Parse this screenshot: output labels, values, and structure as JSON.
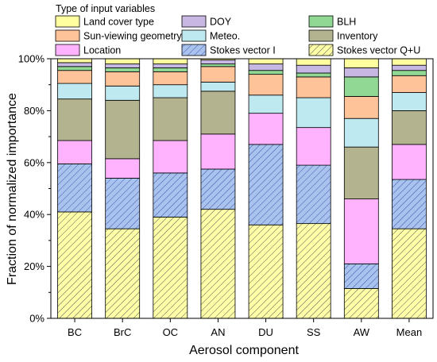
{
  "chart_data": {
    "type": "bar",
    "stacked": true,
    "xlabel": "Aerosol component",
    "ylabel": "Fraction of normalized importance",
    "ylim": [
      0,
      100
    ],
    "yticks": [
      0,
      20,
      40,
      60,
      80,
      100
    ],
    "ytick_suffix": "%",
    "legend_title": "Type of input variables",
    "legend_placement": "top",
    "categories": [
      "BC",
      "BrC",
      "OC",
      "AN",
      "DU",
      "SS",
      "AW",
      "Mean"
    ],
    "series": [
      {
        "name": "Stokes vector Q+U",
        "color": "#ffffa8",
        "pattern": "hatch-yellow",
        "values": [
          41,
          34.5,
          39,
          42,
          36,
          36.5,
          11.5,
          34.5
        ]
      },
      {
        "name": "Stokes vector I",
        "color": "#a9c3ee",
        "pattern": "hatch-blue",
        "values": [
          18.5,
          19.5,
          17,
          15.5,
          31,
          22.5,
          9.5,
          19
        ]
      },
      {
        "name": "Location",
        "color": "#ffb3ff",
        "values": [
          9,
          7.5,
          12.5,
          13.5,
          12,
          14.5,
          25,
          13.5
        ]
      },
      {
        "name": "Inventory",
        "color": "#b3b38f",
        "values": [
          16,
          22.5,
          16.5,
          16.5,
          0,
          0,
          20,
          13
        ]
      },
      {
        "name": "Meteo.",
        "color": "#bfe9f0",
        "values": [
          6,
          5.5,
          5,
          3.5,
          7,
          11.5,
          11,
          7
        ]
      },
      {
        "name": "Sun-viewing geometry",
        "color": "#ffc399",
        "values": [
          5,
          5.5,
          5,
          6,
          8,
          8,
          8.5,
          6.5
        ]
      },
      {
        "name": "BLH",
        "color": "#90d893",
        "values": [
          1.5,
          1.5,
          1.5,
          1,
          1.5,
          1.5,
          7.5,
          2
        ]
      },
      {
        "name": "DOY",
        "color": "#c7b7e3",
        "values": [
          1.5,
          1.5,
          1.5,
          1.5,
          2.5,
          3,
          3.5,
          2
        ]
      },
      {
        "name": "Land cover type",
        "color": "#ffffa0",
        "values": [
          1.5,
          2,
          2,
          0.5,
          2,
          2.5,
          3.5,
          2.5
        ]
      }
    ],
    "legend_order": [
      "Land cover type",
      "DOY",
      "BLH",
      "Sun-viewing geometry",
      "Meteo.",
      "Inventory",
      "Location",
      "Stokes vector I",
      "Stokes vector Q+U"
    ]
  }
}
